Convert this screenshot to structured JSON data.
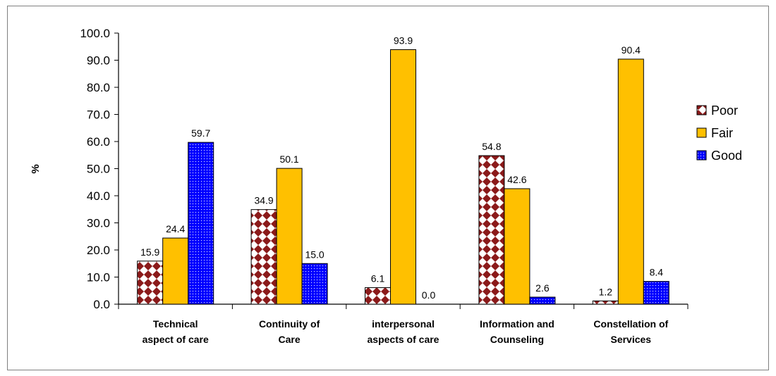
{
  "chart_data": {
    "type": "bar",
    "title": "",
    "xlabel": "",
    "ylabel": "%",
    "ylim": [
      0,
      100
    ],
    "yticks": [
      "0.0",
      "10.0",
      "20.0",
      "30.0",
      "40.0",
      "50.0",
      "60.0",
      "70.0",
      "80.0",
      "90.0",
      "100.0"
    ],
    "categories": [
      [
        "Technical",
        "aspect of care"
      ],
      [
        "Continuity of",
        "Care"
      ],
      [
        "interpersonal",
        "aspects of care"
      ],
      [
        "Information and",
        "Counseling"
      ],
      [
        "Constellation of",
        "Services"
      ]
    ],
    "series": [
      {
        "name": "Poor",
        "values": [
          15.9,
          34.9,
          6.1,
          54.8,
          1.2
        ],
        "labels": [
          "15.9",
          "34.9",
          "6.1",
          "54.8",
          "1.2"
        ],
        "color": "#8B1A1A",
        "pattern": "diamond-check"
      },
      {
        "name": "Fair",
        "values": [
          24.4,
          50.1,
          93.9,
          42.6,
          90.4
        ],
        "labels": [
          "24.4",
          "50.1",
          "93.9",
          "42.6",
          "90.4"
        ],
        "color": "#FFC000",
        "pattern": "solid"
      },
      {
        "name": "Good",
        "values": [
          59.7,
          15.0,
          0.0,
          2.6,
          8.4
        ],
        "labels": [
          "59.7",
          "15.0",
          "0.0",
          "2.6",
          "8.4"
        ],
        "color": "#0000FF",
        "pattern": "dots"
      }
    ],
    "legend": "right",
    "grid": false
  }
}
